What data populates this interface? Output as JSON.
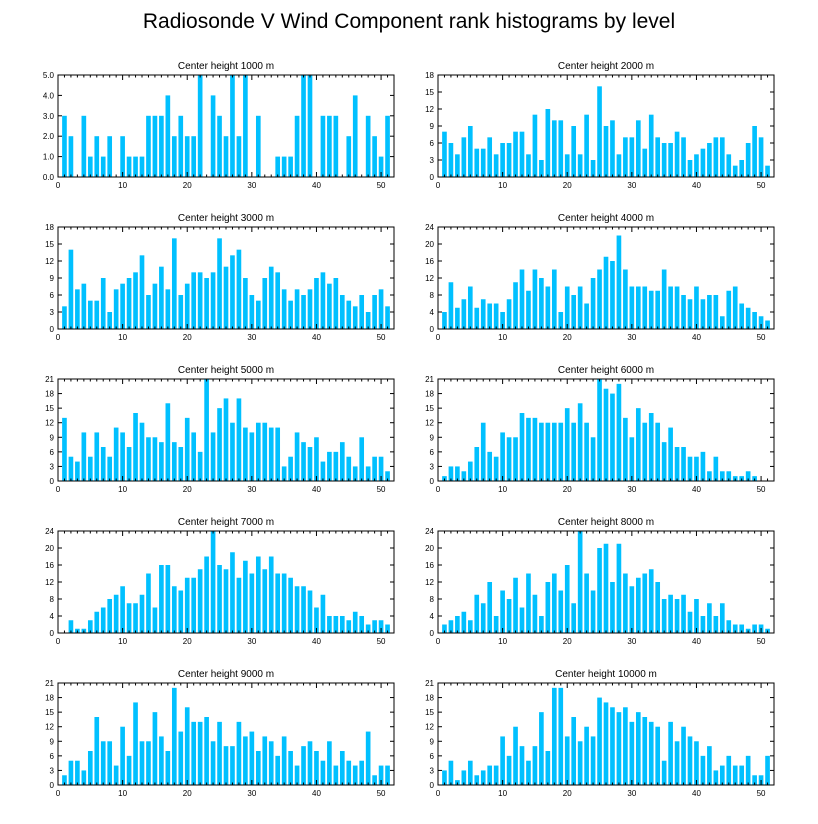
{
  "title": "Radiosonde V Wind Component rank histograms by level",
  "bar_color": "#00c0ff",
  "chart_data": [
    {
      "type": "bar",
      "title": "Center height 1000 m",
      "x": [
        1,
        2,
        3,
        4,
        5,
        6,
        7,
        8,
        9,
        10,
        11,
        12,
        13,
        14,
        15,
        16,
        17,
        18,
        19,
        20,
        21,
        22,
        23,
        24,
        25,
        26,
        27,
        28,
        29,
        30,
        31,
        32,
        33,
        34,
        35,
        36,
        37,
        38,
        39,
        40,
        41,
        42,
        43,
        44,
        45,
        46,
        47,
        48,
        49,
        50,
        51
      ],
      "values": [
        3,
        2,
        0,
        3,
        1,
        2,
        1,
        2,
        0,
        2,
        1,
        1,
        1,
        3,
        3,
        3,
        4,
        2,
        3,
        2,
        2,
        5,
        0,
        4,
        3,
        2,
        5,
        2,
        5,
        0,
        3,
        0,
        0,
        1,
        1,
        1,
        3,
        5,
        5,
        0,
        3,
        3,
        3,
        0,
        2,
        4,
        0,
        3,
        2,
        1,
        3
      ],
      "ylim": [
        0,
        5
      ],
      "yticks": [
        0.0,
        1.0,
        2.0,
        3.0,
        4.0,
        5.0
      ],
      "ytick_labels": [
        "0.0",
        "1.0",
        "2.0",
        "3.0",
        "4.0",
        "5.0"
      ],
      "xlim": [
        0,
        52
      ],
      "xticks": [
        0,
        10,
        20,
        30,
        40,
        50
      ]
    },
    {
      "type": "bar",
      "title": "Center height 2000 m",
      "x": [
        1,
        2,
        3,
        4,
        5,
        6,
        7,
        8,
        9,
        10,
        11,
        12,
        13,
        14,
        15,
        16,
        17,
        18,
        19,
        20,
        21,
        22,
        23,
        24,
        25,
        26,
        27,
        28,
        29,
        30,
        31,
        32,
        33,
        34,
        35,
        36,
        37,
        38,
        39,
        40,
        41,
        42,
        43,
        44,
        45,
        46,
        47,
        48,
        49,
        50,
        51
      ],
      "values": [
        8,
        6,
        4,
        7,
        9,
        5,
        5,
        7,
        4,
        6,
        6,
        8,
        8,
        4,
        11,
        3,
        12,
        10,
        10,
        4,
        9,
        4,
        11,
        3,
        16,
        9,
        10,
        4,
        7,
        7,
        10,
        5,
        11,
        7,
        6,
        6,
        8,
        7,
        3,
        4,
        5,
        6,
        7,
        7,
        4,
        2,
        3,
        6,
        9,
        7,
        2
      ],
      "ylim": [
        0,
        18
      ],
      "yticks": [
        0,
        3,
        6,
        9,
        12,
        15,
        18
      ],
      "ytick_labels": [
        "0",
        "3",
        "6",
        "9",
        "12",
        "15",
        "18"
      ],
      "xlim": [
        0,
        52
      ],
      "xticks": [
        0,
        10,
        20,
        30,
        40,
        50
      ]
    },
    {
      "type": "bar",
      "title": "Center height 3000 m",
      "x": [
        1,
        2,
        3,
        4,
        5,
        6,
        7,
        8,
        9,
        10,
        11,
        12,
        13,
        14,
        15,
        16,
        17,
        18,
        19,
        20,
        21,
        22,
        23,
        24,
        25,
        26,
        27,
        28,
        29,
        30,
        31,
        32,
        33,
        34,
        35,
        36,
        37,
        38,
        39,
        40,
        41,
        42,
        43,
        44,
        45,
        46,
        47,
        48,
        49,
        50,
        51
      ],
      "values": [
        4,
        14,
        7,
        8,
        5,
        5,
        9,
        3,
        7,
        8,
        9,
        10,
        13,
        6,
        8,
        11,
        7,
        16,
        6,
        8,
        10,
        10,
        9,
        10,
        16,
        11,
        13,
        14,
        9,
        6,
        5,
        9,
        11,
        10,
        7,
        5,
        7,
        6,
        7,
        9,
        10,
        8,
        9,
        6,
        5,
        4,
        6,
        3,
        6,
        7,
        4
      ],
      "ylim": [
        0,
        18
      ],
      "yticks": [
        0,
        3,
        6,
        9,
        12,
        15,
        18
      ],
      "ytick_labels": [
        "0",
        "3",
        "6",
        "9",
        "12",
        "15",
        "18"
      ],
      "xlim": [
        0,
        52
      ],
      "xticks": [
        0,
        10,
        20,
        30,
        40,
        50
      ]
    },
    {
      "type": "bar",
      "title": "Center height 4000 m",
      "x": [
        1,
        2,
        3,
        4,
        5,
        6,
        7,
        8,
        9,
        10,
        11,
        12,
        13,
        14,
        15,
        16,
        17,
        18,
        19,
        20,
        21,
        22,
        23,
        24,
        25,
        26,
        27,
        28,
        29,
        30,
        31,
        32,
        33,
        34,
        35,
        36,
        37,
        38,
        39,
        40,
        41,
        42,
        43,
        44,
        45,
        46,
        47,
        48,
        49,
        50,
        51
      ],
      "values": [
        4,
        11,
        5,
        7,
        10,
        5,
        7,
        6,
        6,
        4,
        7,
        11,
        14,
        9,
        14,
        12,
        10,
        14,
        4,
        10,
        8,
        10,
        6,
        12,
        14,
        17,
        16,
        22,
        14,
        10,
        10,
        10,
        9,
        9,
        14,
        10,
        10,
        8,
        7,
        10,
        7,
        8,
        8,
        3,
        9,
        10,
        6,
        5,
        4,
        3,
        2
      ],
      "ylim": [
        0,
        24
      ],
      "yticks": [
        0,
        4,
        8,
        12,
        16,
        20,
        24
      ],
      "ytick_labels": [
        "0",
        "4",
        "8",
        "12",
        "16",
        "20",
        "24"
      ],
      "xlim": [
        0,
        52
      ],
      "xticks": [
        0,
        10,
        20,
        30,
        40,
        50
      ]
    },
    {
      "type": "bar",
      "title": "Center height 5000 m",
      "x": [
        1,
        2,
        3,
        4,
        5,
        6,
        7,
        8,
        9,
        10,
        11,
        12,
        13,
        14,
        15,
        16,
        17,
        18,
        19,
        20,
        21,
        22,
        23,
        24,
        25,
        26,
        27,
        28,
        29,
        30,
        31,
        32,
        33,
        34,
        35,
        36,
        37,
        38,
        39,
        40,
        41,
        42,
        43,
        44,
        45,
        46,
        47,
        48,
        49,
        50,
        51
      ],
      "values": [
        13,
        5,
        4,
        10,
        5,
        10,
        7,
        5,
        11,
        10,
        7,
        14,
        12,
        9,
        9,
        8,
        16,
        8,
        7,
        13,
        10,
        6,
        21,
        10,
        15,
        17,
        12,
        17,
        11,
        10,
        12,
        12,
        11,
        11,
        3,
        5,
        10,
        8,
        7,
        9,
        4,
        6,
        6,
        8,
        5,
        3,
        9,
        3,
        5,
        5,
        2
      ],
      "ylim": [
        0,
        21
      ],
      "yticks": [
        0,
        3,
        6,
        9,
        12,
        15,
        18,
        21
      ],
      "ytick_labels": [
        "0",
        "3",
        "6",
        "9",
        "12",
        "15",
        "18",
        "21"
      ],
      "xlim": [
        0,
        52
      ],
      "xticks": [
        0,
        10,
        20,
        30,
        40,
        50
      ]
    },
    {
      "type": "bar",
      "title": "Center height 6000 m",
      "x": [
        1,
        2,
        3,
        4,
        5,
        6,
        7,
        8,
        9,
        10,
        11,
        12,
        13,
        14,
        15,
        16,
        17,
        18,
        19,
        20,
        21,
        22,
        23,
        24,
        25,
        26,
        27,
        28,
        29,
        30,
        31,
        32,
        33,
        34,
        35,
        36,
        37,
        38,
        39,
        40,
        41,
        42,
        43,
        44,
        45,
        46,
        47,
        48,
        49,
        50,
        51
      ],
      "values": [
        1,
        3,
        3,
        2,
        4,
        7,
        12,
        6,
        5,
        10,
        9,
        9,
        14,
        13,
        13,
        12,
        12,
        12,
        12,
        15,
        12,
        16,
        12,
        9,
        21,
        19,
        18,
        20,
        13,
        9,
        15,
        12,
        14,
        12,
        8,
        11,
        7,
        7,
        5,
        5,
        6,
        2,
        5,
        2,
        2,
        1,
        1,
        2,
        1,
        0,
        0
      ],
      "ylim": [
        0,
        21
      ],
      "yticks": [
        0,
        3,
        6,
        9,
        12,
        15,
        18,
        21
      ],
      "ytick_labels": [
        "0",
        "3",
        "6",
        "9",
        "12",
        "15",
        "18",
        "21"
      ],
      "xlim": [
        0,
        52
      ],
      "xticks": [
        0,
        10,
        20,
        30,
        40,
        50
      ]
    },
    {
      "type": "bar",
      "title": "Center height 7000 m",
      "x": [
        1,
        2,
        3,
        4,
        5,
        6,
        7,
        8,
        9,
        10,
        11,
        12,
        13,
        14,
        15,
        16,
        17,
        18,
        19,
        20,
        21,
        22,
        23,
        24,
        25,
        26,
        27,
        28,
        29,
        30,
        31,
        32,
        33,
        34,
        35,
        36,
        37,
        38,
        39,
        40,
        41,
        42,
        43,
        44,
        45,
        46,
        47,
        48,
        49,
        50,
        51
      ],
      "values": [
        0,
        3,
        1,
        1,
        3,
        5,
        6,
        8,
        9,
        11,
        7,
        7,
        9,
        14,
        6,
        16,
        16,
        11,
        10,
        13,
        13,
        15,
        18,
        24,
        16,
        15,
        19,
        13,
        17,
        14,
        18,
        15,
        18,
        14,
        14,
        13,
        11,
        11,
        10,
        6,
        9,
        4,
        4,
        4,
        3,
        5,
        4,
        2,
        3,
        3,
        2
      ],
      "ylim": [
        0,
        24
      ],
      "yticks": [
        0,
        4,
        8,
        12,
        16,
        20,
        24
      ],
      "ytick_labels": [
        "0",
        "4",
        "8",
        "12",
        "16",
        "20",
        "24"
      ],
      "xlim": [
        0,
        52
      ],
      "xticks": [
        0,
        10,
        20,
        30,
        40,
        50
      ]
    },
    {
      "type": "bar",
      "title": "Center height 8000 m",
      "x": [
        1,
        2,
        3,
        4,
        5,
        6,
        7,
        8,
        9,
        10,
        11,
        12,
        13,
        14,
        15,
        16,
        17,
        18,
        19,
        20,
        21,
        22,
        23,
        24,
        25,
        26,
        27,
        28,
        29,
        30,
        31,
        32,
        33,
        34,
        35,
        36,
        37,
        38,
        39,
        40,
        41,
        42,
        43,
        44,
        45,
        46,
        47,
        48,
        49,
        50,
        51
      ],
      "values": [
        2,
        3,
        4,
        5,
        3,
        9,
        7,
        12,
        4,
        10,
        8,
        13,
        6,
        14,
        9,
        4,
        12,
        14,
        10,
        16,
        7,
        24,
        14,
        10,
        20,
        21,
        12,
        21,
        14,
        11,
        13,
        14,
        15,
        12,
        8,
        9,
        8,
        9,
        5,
        8,
        4,
        7,
        4,
        7,
        3,
        2,
        2,
        1,
        2,
        2,
        1
      ],
      "ylim": [
        0,
        24
      ],
      "yticks": [
        0,
        4,
        8,
        12,
        16,
        20,
        24
      ],
      "ytick_labels": [
        "0",
        "4",
        "8",
        "12",
        "16",
        "20",
        "24"
      ],
      "xlim": [
        0,
        52
      ],
      "xticks": [
        0,
        10,
        20,
        30,
        40,
        50
      ]
    },
    {
      "type": "bar",
      "title": "Center height 9000 m",
      "x": [
        1,
        2,
        3,
        4,
        5,
        6,
        7,
        8,
        9,
        10,
        11,
        12,
        13,
        14,
        15,
        16,
        17,
        18,
        19,
        20,
        21,
        22,
        23,
        24,
        25,
        26,
        27,
        28,
        29,
        30,
        31,
        32,
        33,
        34,
        35,
        36,
        37,
        38,
        39,
        40,
        41,
        42,
        43,
        44,
        45,
        46,
        47,
        48,
        49,
        50,
        51
      ],
      "values": [
        2,
        5,
        5,
        3,
        7,
        14,
        9,
        9,
        4,
        12,
        6,
        17,
        9,
        9,
        15,
        10,
        7,
        20,
        11,
        16,
        13,
        13,
        14,
        9,
        13,
        8,
        8,
        13,
        10,
        11,
        7,
        10,
        9,
        6,
        10,
        7,
        4,
        8,
        9,
        7,
        5,
        9,
        4,
        7,
        5,
        4,
        5,
        11,
        2,
        4,
        4
      ],
      "ylim": [
        0,
        21
      ],
      "yticks": [
        0,
        3,
        6,
        9,
        12,
        15,
        18,
        21
      ],
      "ytick_labels": [
        "0",
        "3",
        "6",
        "9",
        "12",
        "15",
        "18",
        "21"
      ],
      "xlim": [
        0,
        52
      ],
      "xticks": [
        0,
        10,
        20,
        30,
        40,
        50
      ]
    },
    {
      "type": "bar",
      "title": "Center height 10000 m",
      "x": [
        1,
        2,
        3,
        4,
        5,
        6,
        7,
        8,
        9,
        10,
        11,
        12,
        13,
        14,
        15,
        16,
        17,
        18,
        19,
        20,
        21,
        22,
        23,
        24,
        25,
        26,
        27,
        28,
        29,
        30,
        31,
        32,
        33,
        34,
        35,
        36,
        37,
        38,
        39,
        40,
        41,
        42,
        43,
        44,
        45,
        46,
        47,
        48,
        49,
        50,
        51
      ],
      "values": [
        3,
        5,
        1,
        3,
        5,
        2,
        3,
        4,
        4,
        10,
        6,
        12,
        8,
        5,
        8,
        15,
        7,
        20,
        20,
        10,
        14,
        9,
        12,
        10,
        18,
        17,
        16,
        15,
        16,
        13,
        15,
        14,
        13,
        12,
        5,
        13,
        9,
        12,
        10,
        9,
        6,
        8,
        3,
        4,
        6,
        4,
        4,
        6,
        2,
        2,
        6
      ],
      "ylim": [
        0,
        21
      ],
      "yticks": [
        0,
        3,
        6,
        9,
        12,
        15,
        18,
        21
      ],
      "ytick_labels": [
        "0",
        "3",
        "6",
        "9",
        "12",
        "15",
        "18",
        "21"
      ],
      "xlim": [
        0,
        52
      ],
      "xticks": [
        0,
        10,
        20,
        30,
        40,
        50
      ]
    }
  ]
}
